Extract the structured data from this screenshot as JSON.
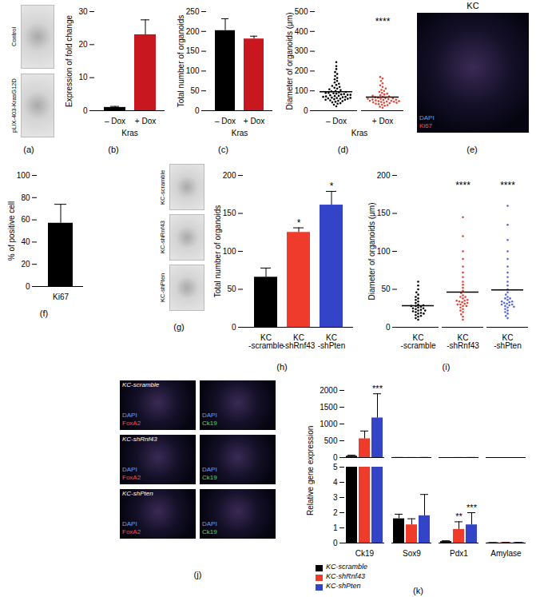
{
  "chart_data": [
    {
      "type": "image",
      "panel": "(a)",
      "images": [
        {
          "label": "Control"
        },
        {
          "label": "pLIX-403-KrasG12D"
        }
      ]
    },
    {
      "type": "bar",
      "panel": "(b)",
      "y_label": "Expression of fold change",
      "x_label": "Kras",
      "categories": [
        "– Dox",
        "+ Dox"
      ],
      "values": [
        1,
        23
      ],
      "errors": [
        0.3,
        4.5
      ],
      "colors": [
        "#000000",
        "#c8171e"
      ],
      "ylim": [
        0,
        30
      ],
      "yticks": [
        0,
        10,
        20,
        30
      ]
    },
    {
      "type": "bar",
      "panel": "(c)",
      "y_label": "Total number of organoids",
      "x_label": "Kras",
      "categories": [
        "– Dox",
        "+ Dox"
      ],
      "values": [
        202,
        181
      ],
      "errors": [
        30,
        7
      ],
      "colors": [
        "#000000",
        "#c8171e"
      ],
      "ylim": [
        0,
        250
      ],
      "yticks": [
        0,
        50,
        100,
        150,
        200,
        250
      ]
    },
    {
      "type": "scatter",
      "panel": "(d)",
      "y_label": "Diameter of organoids (μm)",
      "x_label": "Kras",
      "categories": [
        "– Dox",
        "+ Dox"
      ],
      "colors": [
        "#000000",
        "#e0453a"
      ],
      "values": [
        [
          22,
          30,
          35,
          38,
          42,
          45,
          48,
          50,
          52,
          55,
          58,
          60,
          62,
          64,
          66,
          68,
          70,
          72,
          74,
          75,
          78,
          80,
          82,
          84,
          86,
          88,
          90,
          92,
          95,
          98,
          100,
          104,
          108,
          112,
          116,
          120,
          125,
          130,
          136,
          142,
          150,
          158,
          165,
          175,
          185,
          195,
          210,
          225,
          245,
          60,
          70,
          80,
          90,
          55,
          65
        ],
        [
          15,
          20,
          25,
          28,
          30,
          33,
          35,
          38,
          40,
          42,
          44,
          46,
          48,
          50,
          52,
          54,
          56,
          58,
          60,
          62,
          64,
          66,
          68,
          70,
          72,
          75,
          78,
          82,
          86,
          90,
          95,
          100,
          105,
          112,
          120,
          128,
          138,
          150,
          162,
          170,
          45,
          50,
          55,
          60,
          40,
          48
        ]
      ],
      "annotations": [
        {
          "category": "+ Dox",
          "text": "****"
        }
      ],
      "ylim": [
        0,
        500
      ],
      "yticks": [
        0,
        100,
        200,
        300,
        400,
        500
      ]
    },
    {
      "type": "image",
      "panel": "(e)",
      "title": "KC",
      "images": [
        {
          "channels": [
            {
              "label": "DAPI",
              "color": "#6f9bff"
            },
            {
              "label": "Ki67",
              "color": "#ff4a4a"
            }
          ]
        }
      ]
    },
    {
      "type": "bar",
      "panel": "(f)",
      "y_label": "% of positive cell",
      "categories": [
        "Ki67"
      ],
      "values": [
        57
      ],
      "errors": [
        17
      ],
      "color": "#000000",
      "ylim": [
        0,
        100
      ],
      "yticks": [
        0,
        20,
        40,
        60,
        80,
        100
      ]
    },
    {
      "type": "image",
      "panel": "(g)",
      "images": [
        {
          "label": "KC-scramble"
        },
        {
          "label": "KC-shRnf43"
        },
        {
          "label": "KC-shPten"
        }
      ]
    },
    {
      "type": "bar",
      "panel": "(h)",
      "y_label": "Total number of organoids",
      "categories": [
        "KC\n-scramble",
        "KC\n-shRnf43",
        "KC\n-shPten"
      ],
      "values": [
        66,
        125,
        161
      ],
      "errors": [
        12,
        6,
        18
      ],
      "colors": [
        "#000000",
        "#ef3b2c",
        "#3344c8"
      ],
      "annotations": [
        {
          "category": "KC\n-shRnf43",
          "text": "*"
        },
        {
          "category": "KC\n-shPten",
          "text": "*"
        }
      ],
      "ylim": [
        0,
        200
      ],
      "yticks": [
        0,
        50,
        100,
        150,
        200
      ]
    },
    {
      "type": "scatter",
      "panel": "(i)",
      "y_label": "Diameter of organoids (μm)",
      "categories": [
        "KC\n-scramble",
        "KC\n-shRnf43",
        "KC\n-shPten"
      ],
      "colors": [
        "#000000",
        "#e0453a",
        "#5566d8"
      ],
      "values": [
        [
          10,
          12,
          14,
          15,
          16,
          18,
          19,
          20,
          21,
          22,
          23,
          24,
          25,
          26,
          27,
          28,
          29,
          30,
          32,
          34,
          36,
          38,
          40,
          43,
          46,
          50,
          55,
          60,
          22,
          25,
          28,
          18
        ],
        [
          10,
          14,
          17,
          20,
          22,
          24,
          26,
          28,
          30,
          31,
          32,
          33,
          34,
          35,
          36,
          38,
          40,
          42,
          45,
          48,
          52,
          56,
          60,
          66,
          72,
          80,
          90,
          100,
          120,
          145,
          30,
          35,
          40,
          28
        ],
        [
          12,
          15,
          18,
          20,
          22,
          24,
          26,
          28,
          29,
          30,
          31,
          32,
          33,
          34,
          36,
          38,
          40,
          43,
          46,
          50,
          55,
          60,
          66,
          72,
          80,
          90,
          100,
          115,
          135,
          160,
          30,
          34,
          38,
          27
        ]
      ],
      "annotations": [
        {
          "category": "KC\n-shRnf43",
          "text": "****"
        },
        {
          "category": "KC\n-shPten",
          "text": "****"
        }
      ],
      "ylim": [
        0,
        200
      ],
      "yticks": [
        0,
        50,
        100,
        150,
        200
      ]
    },
    {
      "type": "image",
      "panel": "(j)",
      "columns": 2,
      "images": [
        {
          "label": "KC-scramble",
          "channels": [
            {
              "label": "DAPI",
              "color": "#6f9bff"
            },
            {
              "label": "FoxA2",
              "color": "#ff4a4a"
            }
          ]
        },
        {
          "channels": [
            {
              "label": "DAPI",
              "color": "#6f9bff"
            },
            {
              "label": "Ck19",
              "color": "#4be04b"
            }
          ]
        },
        {
          "label": "KC-shRnf43",
          "channels": [
            {
              "label": "DAPI",
              "color": "#6f9bff"
            },
            {
              "label": "FoxA2",
              "color": "#ff4a4a"
            }
          ]
        },
        {
          "channels": [
            {
              "label": "DAPI",
              "color": "#6f9bff"
            },
            {
              "label": "Ck19",
              "color": "#4be04b"
            }
          ]
        },
        {
          "label": "KC-shPten",
          "channels": [
            {
              "label": "DAPI",
              "color": "#6f9bff"
            },
            {
              "label": "FoxA2",
              "color": "#ff4a4a"
            }
          ]
        },
        {
          "channels": [
            {
              "label": "DAPI",
              "color": "#6f9bff"
            },
            {
              "label": "Ck19",
              "color": "#4be04b"
            }
          ]
        }
      ]
    },
    {
      "type": "grouped_bar",
      "panel": "(k)",
      "y_label": "Relative gene expression",
      "categories": [
        "Ck19",
        "Sox9",
        "Pdx1",
        "Amylase"
      ],
      "series": [
        {
          "name": "KC-scramble",
          "color": "#000000",
          "values": [
            40,
            1.6,
            0.1,
            0.02
          ],
          "errors": [
            30,
            0.3,
            0.05,
            0.01
          ]
        },
        {
          "name": "KC-shRnf43",
          "color": "#ef3b2c",
          "values": [
            560,
            1.2,
            0.9,
            0.03
          ],
          "errors": [
            230,
            0.4,
            0.5,
            0.01
          ]
        },
        {
          "name": "KC-shPten",
          "color": "#3344c8",
          "values": [
            1180,
            1.8,
            1.2,
            0.03
          ],
          "errors": [
            720,
            1.4,
            0.8,
            0.01
          ]
        }
      ],
      "annotations": [
        {
          "category": "Ck19",
          "series": "KC-shPten",
          "text": "***"
        },
        {
          "category": "Pdx1",
          "series": "KC-shRnf43",
          "text": "**"
        },
        {
          "category": "Pdx1",
          "series": "KC-shPten",
          "text": "***"
        }
      ],
      "y_segments": [
        {
          "ylim": [
            0,
            5
          ],
          "yticks": [
            0,
            1,
            2,
            3,
            4,
            5
          ]
        },
        {
          "ylim": [
            0,
            2000
          ],
          "yticks": [
            0,
            500,
            1000,
            1500,
            2000
          ]
        }
      ],
      "legend": "bottom-left"
    }
  ]
}
